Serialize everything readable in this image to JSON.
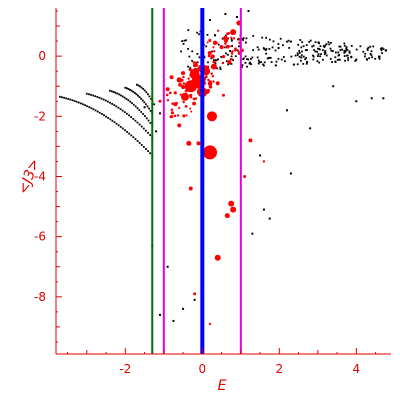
{
  "chart_data": {
    "type": "scatter",
    "title": "",
    "xlabel": "E",
    "ylabel": "<J3>",
    "xlim": [
      -3.8,
      4.9
    ],
    "ylim": [
      -9.9,
      1.6
    ],
    "xticks": [
      -2,
      0,
      2,
      4
    ],
    "yticks": [
      0,
      -2,
      -4,
      -6,
      -8
    ],
    "colors": {
      "axis": "#e00000",
      "black_points": "#000000",
      "red_points": "#ff0000",
      "vline_green": "#007000",
      "vline_magenta": "#e000e0",
      "vline_blue": "#0000ff"
    },
    "vertical_lines": [
      {
        "x": -1.3,
        "color": "#007000",
        "width": 2
      },
      {
        "x": -1.0,
        "color": "#e000e0",
        "width": 2
      },
      {
        "x": 0.0,
        "color": "#0000ff",
        "width": 4
      },
      {
        "x": 1.0,
        "color": "#e000e0",
        "width": 2
      }
    ],
    "black_curves": [
      {
        "x0": -3.7,
        "y0": -1.35,
        "x1": -1.3,
        "y1": -3.3,
        "n": 45
      },
      {
        "x0": -3.0,
        "y0": -1.25,
        "x1": -1.3,
        "y1": -2.7,
        "n": 32
      },
      {
        "x0": -2.4,
        "y0": -1.15,
        "x1": -1.3,
        "y1": -2.3,
        "n": 24
      },
      {
        "x0": -2.0,
        "y0": -1.05,
        "x1": -1.3,
        "y1": -1.9,
        "n": 18
      },
      {
        "x0": -1.7,
        "y0": -0.95,
        "x1": -1.25,
        "y1": -1.6,
        "n": 12
      }
    ],
    "black_bands": [
      {
        "x0": -0.6,
        "x1": 4.8,
        "ya0": -0.2,
        "ya1": 0.1,
        "yb0": 0.9,
        "yb1": 0.3,
        "n": 170
      },
      {
        "x0": -0.4,
        "x1": 4.8,
        "ya0": -0.5,
        "ya1": -0.1,
        "yb0": -0.1,
        "yb1": 0.1,
        "n": 110
      }
    ],
    "black_points": [
      [
        -1.3,
        -6.3
      ],
      [
        -0.9,
        -7.0
      ],
      [
        -1.1,
        -8.6
      ],
      [
        -0.75,
        -8.8
      ],
      [
        -0.5,
        -8.4
      ],
      [
        -0.2,
        -8.1
      ],
      [
        1.3,
        -5.9
      ],
      [
        1.6,
        -5.1
      ],
      [
        1.75,
        -5.4
      ],
      [
        1.5,
        -3.3
      ],
      [
        2.3,
        -3.9
      ],
      [
        2.8,
        -2.4
      ],
      [
        2.2,
        -1.8
      ],
      [
        4.0,
        -1.5
      ],
      [
        4.4,
        -1.4
      ],
      [
        4.7,
        -1.4
      ],
      [
        3.4,
        -1.0
      ],
      [
        -1.5,
        -1.7
      ],
      [
        -1.2,
        -2.5
      ],
      [
        -1.1,
        -1.9
      ],
      [
        0.2,
        1.2
      ],
      [
        0.6,
        1.4
      ],
      [
        1.2,
        1.5
      ],
      [
        0.9,
        1.3
      ]
    ],
    "red_points": [
      {
        "x": 0.2,
        "y": -3.2,
        "s": 7
      },
      {
        "x": 0.25,
        "y": -2.0,
        "s": 5
      },
      {
        "x": -0.3,
        "y": -1.0,
        "s": 6
      },
      {
        "x": -0.1,
        "y": -0.85,
        "s": 7
      },
      {
        "x": 0.0,
        "y": -1.2,
        "s": 5
      },
      {
        "x": -0.2,
        "y": -0.6,
        "s": 5
      },
      {
        "x": -0.45,
        "y": -1.35,
        "s": 4
      },
      {
        "x": 0.1,
        "y": -0.5,
        "s": 4
      },
      {
        "x": 0.3,
        "y": -0.35,
        "s": 3
      },
      {
        "x": 0.4,
        "y": -6.7,
        "s": 3
      },
      {
        "x": 0.75,
        "y": -4.9,
        "s": 3
      },
      {
        "x": 0.8,
        "y": -5.1,
        "s": 3
      },
      {
        "x": 0.65,
        "y": -5.3,
        "s": 2.5
      },
      {
        "x": -0.3,
        "y": -4.4,
        "s": 2
      },
      {
        "x": -0.35,
        "y": -2.9,
        "s": 2.5
      },
      {
        "x": -0.1,
        "y": -2.9,
        "s": 2
      },
      {
        "x": -0.2,
        "y": -7.9,
        "s": 1.5
      },
      {
        "x": 0.2,
        "y": -8.9,
        "s": 1.2
      },
      {
        "x": 1.25,
        "y": -2.8,
        "s": 2
      },
      {
        "x": 1.1,
        "y": -4.0,
        "s": 1.5
      },
      {
        "x": 1.6,
        "y": -3.5,
        "s": 1.2
      },
      {
        "x": 0.8,
        "y": 0.8,
        "s": 3
      },
      {
        "x": 0.95,
        "y": 1.1,
        "s": 2.5
      },
      {
        "x": 0.6,
        "y": 0.6,
        "s": 2.5
      },
      {
        "x": 0.5,
        "y": 0.3,
        "s": 2
      },
      {
        "x": 0.7,
        "y": -0.2,
        "s": 2
      },
      {
        "x": -0.6,
        "y": -2.3,
        "s": 2
      },
      {
        "x": -0.7,
        "y": -1.6,
        "s": 2
      },
      {
        "x": -0.9,
        "y": -1.1,
        "s": 2
      },
      {
        "x": -1.1,
        "y": -1.5,
        "s": 1.5
      },
      {
        "x": -0.8,
        "y": -0.7,
        "s": 2
      },
      {
        "x": 0.4,
        "y": -0.9,
        "s": 2
      },
      {
        "x": 0.55,
        "y": -1.3,
        "s": 1.5
      }
    ],
    "red_clusters": [
      {
        "cx": -0.15,
        "cy": -0.8,
        "rx": 0.45,
        "ry": 0.65,
        "n": 60,
        "smin": 1.2,
        "smax": 3.2
      },
      {
        "cx": 0.55,
        "cy": 0.3,
        "rx": 0.5,
        "ry": 0.6,
        "n": 35,
        "smin": 1,
        "smax": 2.5
      },
      {
        "cx": -0.55,
        "cy": -1.6,
        "rx": 0.45,
        "ry": 0.6,
        "n": 25,
        "smin": 1,
        "smax": 2.2
      }
    ]
  }
}
